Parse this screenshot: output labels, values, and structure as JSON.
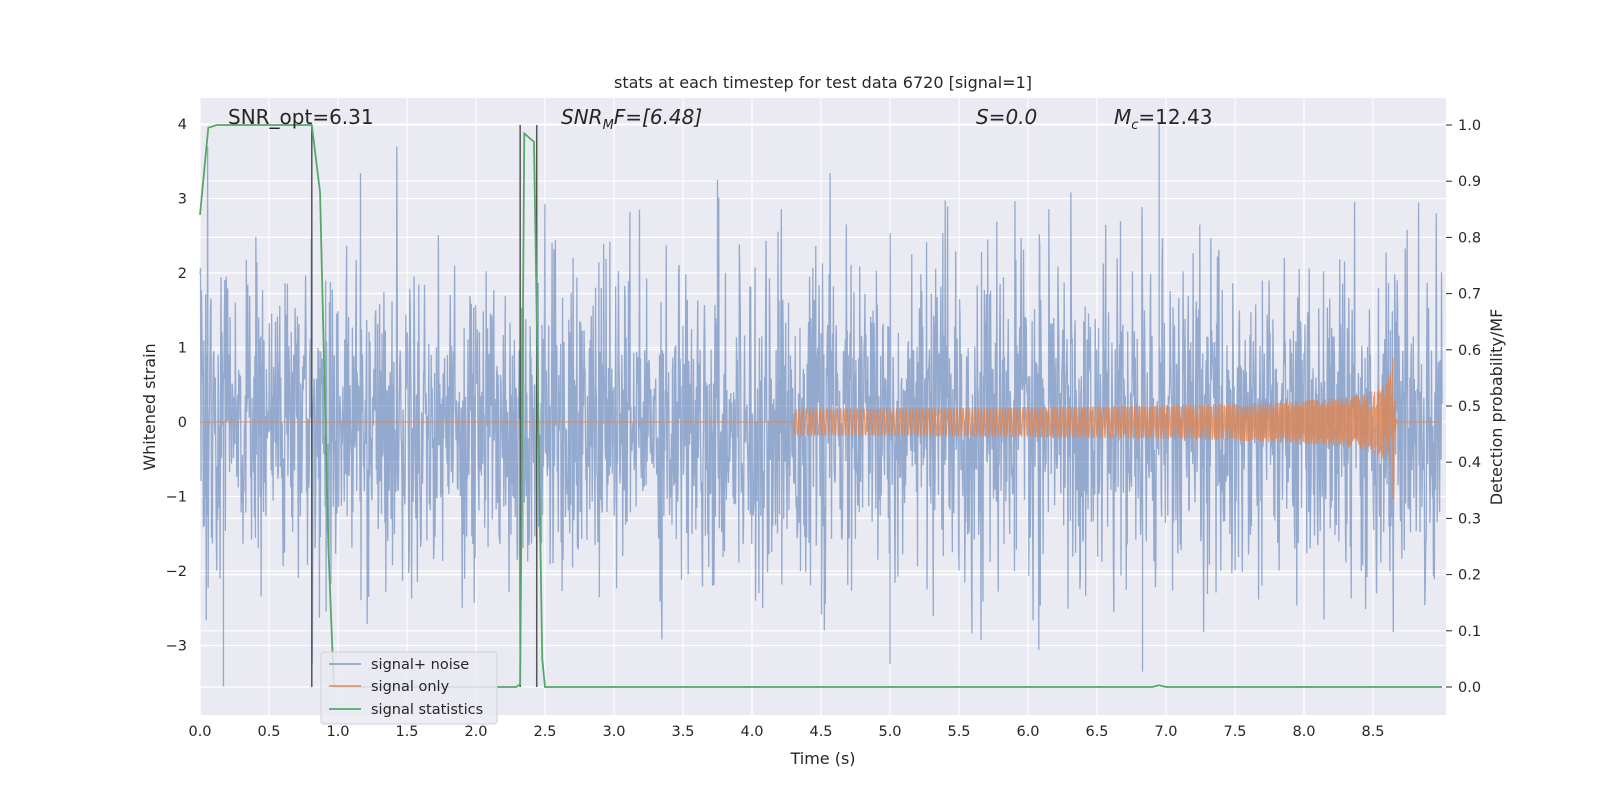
{
  "chart_data": {
    "type": "line",
    "title": "stats at each timestep for test data 6720 [signal=1]",
    "xlabel": "Time (s)",
    "ylabel_left": "Whitened strain",
    "ylabel_right": "Detection probability/MF",
    "xlim": [
      0.0,
      9.0
    ],
    "ylim_left": [
      -3.9,
      4.35
    ],
    "ylim_right": [
      -0.05,
      1.02
    ],
    "xticks": [
      "0.0",
      "0.5",
      "1.0",
      "1.5",
      "2.0",
      "2.5",
      "3.0",
      "3.5",
      "4.0",
      "4.5",
      "5.0",
      "5.5",
      "6.0",
      "6.5",
      "7.0",
      "7.5",
      "8.0",
      "8.5"
    ],
    "yticks_left": [
      "4",
      "3",
      "2",
      "1",
      "0",
      "−1",
      "−2",
      "−3"
    ],
    "yticks_right": [
      "1.0",
      "0.9",
      "0.8",
      "0.7",
      "0.6",
      "0.5",
      "0.4",
      "0.3",
      "0.2",
      "0.1",
      "0.0"
    ],
    "grid": true,
    "legend_placement": "lower-left",
    "annotations": {
      "snr_opt": "SNR_opt=6.31",
      "snr_mf_base": "SNR",
      "snr_mf_sub": "M",
      "snr_mf_rest": "F=[6.48]",
      "s_stat": "S=0.0",
      "mc_base": "M",
      "mc_sub": "c",
      "mc_rest": "=12.43"
    },
    "vertical_markers_x": [
      0.81,
      2.32,
      2.44
    ],
    "series": [
      {
        "name": "signal+ noise",
        "axis": "left",
        "color": "#4c72b0",
        "opacity": 0.55,
        "description_values": {
          "mean": 0.0,
          "std": 1.0,
          "notable_peaks": [
            [
              0.17,
              -3.55
            ],
            [
              3.75,
              3.25
            ],
            [
              6.95,
              4.0
            ],
            [
              6.83,
              -3.35
            ],
            [
              5.0,
              -3.25
            ]
          ]
        }
      },
      {
        "name": "signal only",
        "axis": "left",
        "color": "#dd8452",
        "chirp_end_x": 8.65,
        "chirp_peak_amplitude": 1.15
      },
      {
        "name": "signal statistics",
        "axis": "right",
        "color": "#55a868",
        "points": [
          [
            0.0,
            0.84
          ],
          [
            0.06,
            0.995
          ],
          [
            0.12,
            1.0
          ],
          [
            0.8,
            1.0
          ],
          [
            0.81,
            1.0
          ],
          [
            0.87,
            0.88
          ],
          [
            0.93,
            0.25
          ],
          [
            0.97,
            0.0
          ],
          [
            2.29,
            0.0
          ],
          [
            2.32,
            0.005
          ],
          [
            2.35,
            0.985
          ],
          [
            2.42,
            0.97
          ],
          [
            2.48,
            0.05
          ],
          [
            2.5,
            0.0
          ],
          [
            6.9,
            0.0
          ],
          [
            6.95,
            0.003
          ],
          [
            7.0,
            0.0
          ],
          [
            9.0,
            0.0
          ]
        ]
      }
    ]
  },
  "colors": {
    "axes_bg": "#eaeaf2",
    "grid": "#ffffff",
    "marker": "#555555",
    "text": "#262626"
  }
}
